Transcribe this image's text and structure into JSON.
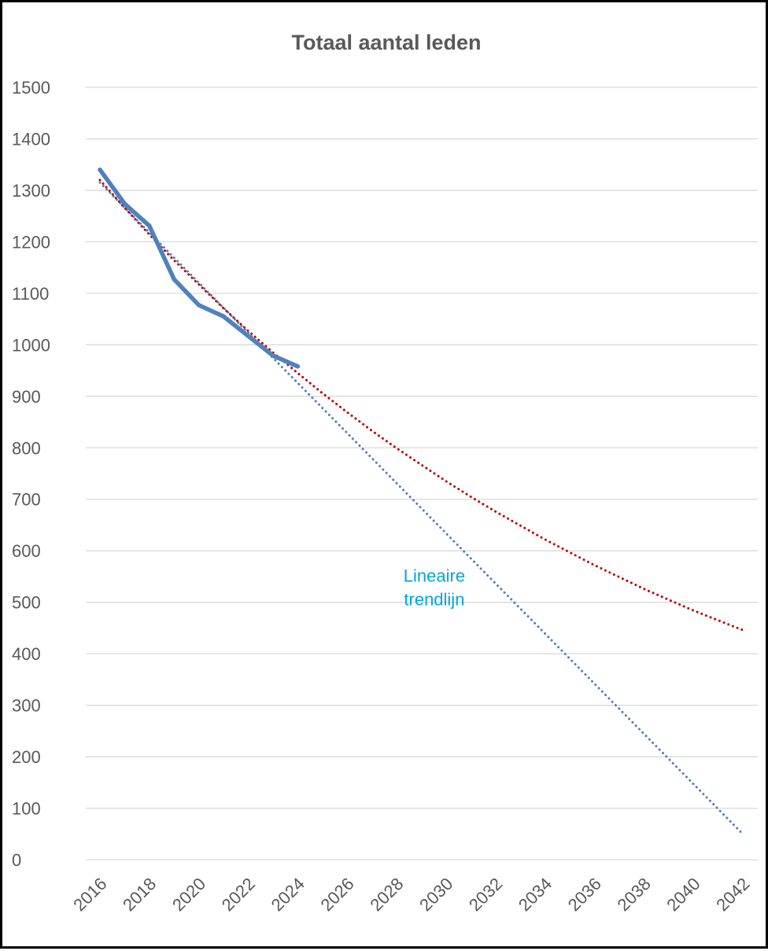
{
  "chart_data": {
    "type": "line",
    "title": "Totaal aantal leden",
    "xlabel": "",
    "ylabel": "",
    "x_ticks": [
      "2016",
      "2018",
      "2020",
      "2022",
      "2024",
      "2026",
      "2028",
      "2030",
      "2032",
      "2034",
      "2036",
      "2038",
      "2040",
      "2042"
    ],
    "y_ticks": [
      "0",
      "100",
      "200",
      "300",
      "400",
      "500",
      "600",
      "700",
      "800",
      "900",
      "1000",
      "1100",
      "1200",
      "1300",
      "1400",
      "1500"
    ],
    "ylim": [
      0,
      1500
    ],
    "xlim": [
      2016,
      2042
    ],
    "grid": "horizontal",
    "legend": "none",
    "series": [
      {
        "type": "solid",
        "color": "#4f81bd",
        "x": [
          2016,
          2017,
          2018,
          2019,
          2020,
          2021,
          2022,
          2023,
          2024
        ],
        "y": [
          1340,
          1274,
          1231,
          1127,
          1077,
          1055,
          1017,
          979,
          958
        ]
      },
      {
        "type": "dotted",
        "color": "#4f81bd",
        "x": [
          2016,
          2042
        ],
        "y": [
          1315,
          50
        ]
      },
      {
        "type": "dotted",
        "color": "#c00000",
        "x": [
          2016,
          2017,
          2018,
          2019,
          2020,
          2021,
          2022,
          2023,
          2024,
          2025,
          2026,
          2027,
          2028,
          2029,
          2030,
          2031,
          2032,
          2033,
          2034,
          2035,
          2036,
          2037,
          2038,
          2039,
          2040,
          2041,
          2042
        ],
        "y": [
          1320,
          1266,
          1214,
          1164,
          1117,
          1071,
          1027,
          985,
          945,
          906,
          869,
          833,
          799,
          767,
          735,
          705,
          676,
          649,
          622,
          597,
          572,
          549,
          526,
          505,
          484,
          465,
          446
        ]
      }
    ],
    "annotations": [
      {
        "text_lines": [
          "Lineaire",
          "trendlijn"
        ],
        "color": "#00a6e0",
        "x": 2030,
        "y": 540
      }
    ]
  }
}
